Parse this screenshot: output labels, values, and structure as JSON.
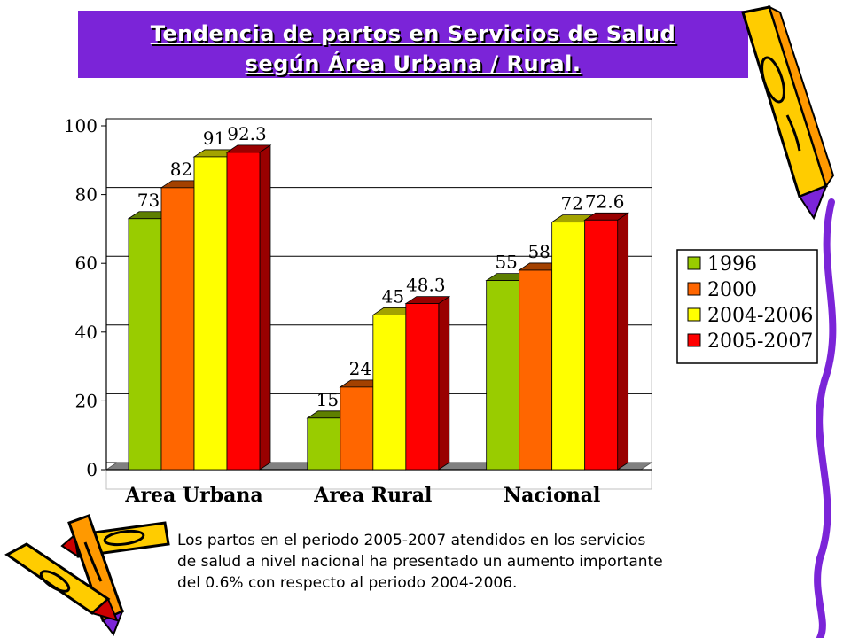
{
  "title": {
    "line1": "Tendencia de partos en Servicios de Salud",
    "line2": "según Área Urbana / Rural."
  },
  "caption": {
    "line1": "Los partos en el periodo 2005-2007 atendidos en los servicios",
    "line2": "de salud a nivel nacional ha presentado un aumento importante",
    "line3": "del 0.6% con respecto al periodo 2004-2006."
  },
  "colors": {
    "banner": "#7b24d8",
    "series": [
      "#99cc00",
      "#ff6600",
      "#ffff00",
      "#ff0000"
    ],
    "series_dark": [
      "#5e7f00",
      "#a34100",
      "#a3a300",
      "#990000"
    ]
  },
  "decorations": [
    "pencil-icon",
    "pencil-icon",
    "pencil-icon",
    "pencil-icon"
  ],
  "chart_data": {
    "type": "bar",
    "style": "3d-clustered",
    "categories": [
      "Area Urbana",
      "Area Rural",
      "Nacional"
    ],
    "series": [
      {
        "name": "1996",
        "values": [
          73,
          15,
          55
        ]
      },
      {
        "name": "2000",
        "values": [
          82,
          24,
          58
        ]
      },
      {
        "name": "2004-2006",
        "values": [
          91,
          45,
          72
        ]
      },
      {
        "name": "2005-2007",
        "values": [
          92.3,
          48.3,
          72.6
        ]
      }
    ],
    "data_labels": [
      [
        "73",
        "15",
        "55"
      ],
      [
        "82",
        "24",
        "58"
      ],
      [
        "91",
        "45",
        "72"
      ],
      [
        "92.3",
        "48.3",
        "72.6"
      ]
    ],
    "ylim": [
      0,
      100
    ],
    "yticks": [
      0,
      20,
      40,
      60,
      80,
      100
    ],
    "grid": true,
    "legend": "right",
    "xlabel": "",
    "ylabel": ""
  }
}
